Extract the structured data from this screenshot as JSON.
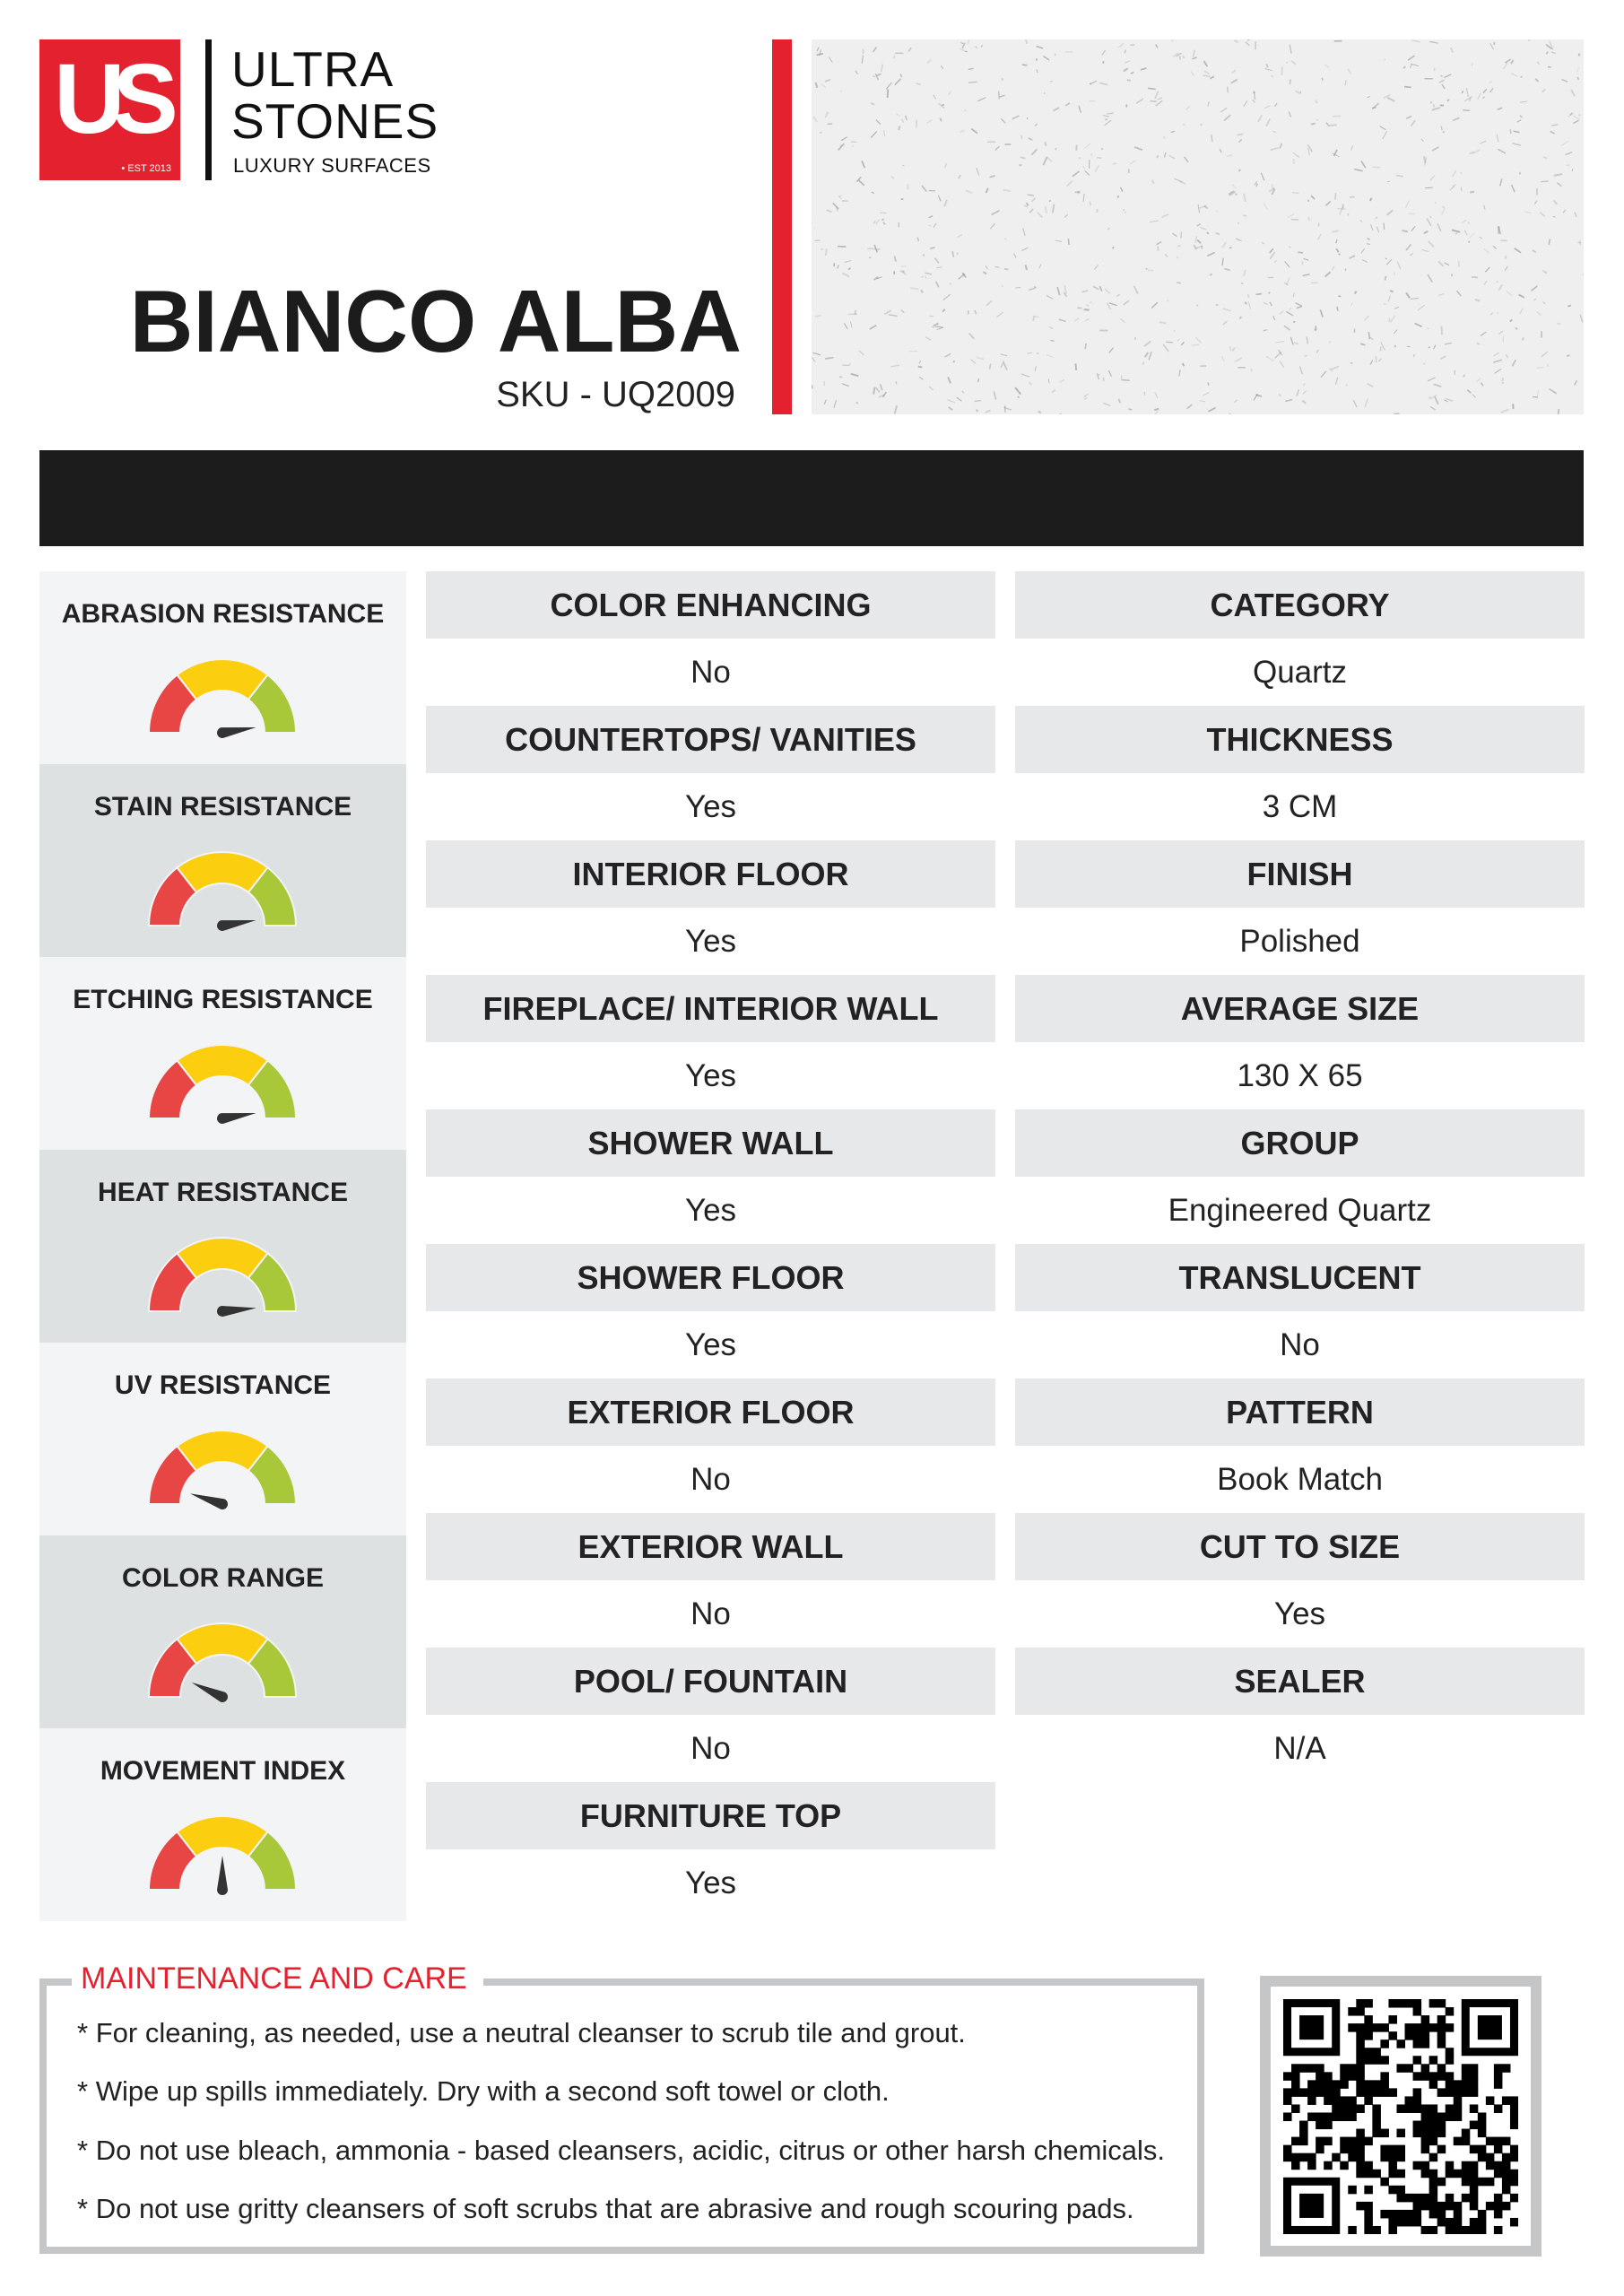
{
  "brand": {
    "logo_letters": "US",
    "est": "• EST 2013",
    "line1": "ULTRA",
    "line2": "STONES",
    "tagline": "LUXURY SURFACES",
    "accent": "#e4222f"
  },
  "product": {
    "name": "BIANCO ALBA",
    "sku": "SKU - UQ2009"
  },
  "gauges": [
    {
      "label": "ABRASION RESISTANCE",
      "value": 0.95
    },
    {
      "label": "STAIN RESISTANCE",
      "value": 0.95
    },
    {
      "label": "ETCHING RESISTANCE",
      "value": 0.95
    },
    {
      "label": "HEAT RESISTANCE",
      "value": 0.97
    },
    {
      "label": "UV RESISTANCE",
      "value": 0.1
    },
    {
      "label": "COLOR RANGE",
      "value": 0.14
    },
    {
      "label": "MOVEMENT INDEX",
      "value": 0.5
    }
  ],
  "gauge_colors": {
    "low": "#e84545",
    "mid": "#fcce10",
    "high": "#a8c83a",
    "needle": "#333333"
  },
  "specs_mid": [
    {
      "label": "COLOR ENHANCING",
      "value": "No"
    },
    {
      "label": "COUNTERTOPS/ VANITIES",
      "value": "Yes"
    },
    {
      "label": "INTERIOR FLOOR",
      "value": "Yes"
    },
    {
      "label": "FIREPLACE/ INTERIOR WALL",
      "value": "Yes"
    },
    {
      "label": "SHOWER WALL",
      "value": "Yes"
    },
    {
      "label": "SHOWER FLOOR",
      "value": "Yes"
    },
    {
      "label": "EXTERIOR FLOOR",
      "value": "No"
    },
    {
      "label": "EXTERIOR WALL",
      "value": "No"
    },
    {
      "label": "POOL/ FOUNTAIN",
      "value": "No"
    },
    {
      "label": "FURNITURE TOP",
      "value": "Yes"
    }
  ],
  "specs_right": [
    {
      "label": "CATEGORY",
      "value": "Quartz"
    },
    {
      "label": "THICKNESS",
      "value": "3 CM"
    },
    {
      "label": "FINISH",
      "value": "Polished"
    },
    {
      "label": "AVERAGE SIZE",
      "value": "130 X 65"
    },
    {
      "label": "GROUP",
      "value": "Engineered Quartz"
    },
    {
      "label": "TRANSLUCENT",
      "value": "No"
    },
    {
      "label": "PATTERN",
      "value": "Book Match"
    },
    {
      "label": "CUT TO SIZE",
      "value": "Yes"
    },
    {
      "label": "SEALER",
      "value": "N/A"
    }
  ],
  "maintenance": {
    "title": "MAINTENANCE AND CARE",
    "bullet_char": "*",
    "items": [
      "For cleaning, as needed, use a neutral cleanser to scrub tile and grout.",
      "Wipe up spills immediately. Dry with a second soft towel or cloth.",
      "Do not use bleach, ammonia - based cleansers, acidic, citrus or other harsh chemicals.",
      "Do not use gritty cleansers of soft scrubs that are abrasive and rough scouring pads."
    ]
  },
  "qr_icon": "qr-code"
}
